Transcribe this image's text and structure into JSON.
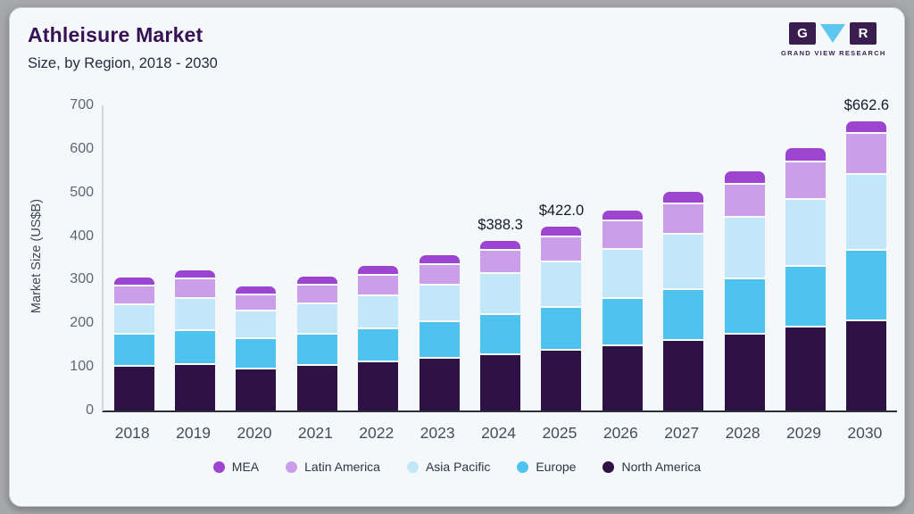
{
  "header": {
    "title": "Athleisure Market",
    "subtitle": "Size, by Region, 2018 - 2030"
  },
  "logo": {
    "letters": [
      "G",
      "R"
    ],
    "triangle_icon": "cyan-down-triangle",
    "text": "GRAND VIEW RESEARCH"
  },
  "chart_data": {
    "type": "bar",
    "stacked": true,
    "title": "Athleisure Market Size, by Region, 2018 - 2030",
    "xlabel": "",
    "ylabel": "Market Size (US$B)",
    "ylim": [
      0,
      700
    ],
    "yticks": [
      0,
      100,
      200,
      300,
      400,
      500,
      600,
      700
    ],
    "grid": false,
    "legend_position": "bottom",
    "categories": [
      "2018",
      "2019",
      "2020",
      "2021",
      "2022",
      "2023",
      "2024",
      "2025",
      "2026",
      "2027",
      "2028",
      "2029",
      "2030"
    ],
    "series": [
      {
        "name": "North America",
        "color": "#2e1145",
        "values": [
          100,
          105,
          95,
          102,
          110,
          118,
          127.3,
          137,
          148,
          160,
          175,
          191,
          205
        ]
      },
      {
        "name": "Europe",
        "color": "#4fc3f0",
        "values": [
          74,
          78,
          69,
          72,
          77,
          85,
          91,
          98,
          107,
          117,
          127,
          139,
          161
        ]
      },
      {
        "name": "Asia Pacific",
        "color": "#c2e7f8",
        "values": [
          68,
          73,
          64,
          70,
          76,
          83,
          94,
          104,
          114,
          126,
          140,
          154,
          175
        ]
      },
      {
        "name": "Latin America",
        "color": "#cb9eea",
        "values": [
          42,
          44,
          37,
          43,
          47,
          47,
          54,
          59,
          64,
          70,
          77,
          85,
          93
        ]
      },
      {
        "name": "MEA",
        "color": "#9d44d0",
        "values": [
          20,
          21,
          19,
          20,
          22,
          24,
          22,
          24,
          26,
          28,
          30,
          33,
          28.6
        ]
      }
    ],
    "legend_order": [
      "MEA",
      "Latin America",
      "Asia Pacific",
      "Europe",
      "North America"
    ],
    "annotations": [
      {
        "category": "2024",
        "text": "$388.3",
        "value": 388.3
      },
      {
        "category": "2025",
        "text": "$422.0",
        "value": 422.0
      },
      {
        "category": "2030",
        "text": "$662.6",
        "value": 662.6
      }
    ]
  },
  "colors": {
    "page_bg": "#a7a8ac",
    "card_bg": "#f5f8fa",
    "title": "#371056",
    "subtitle": "#222e3e",
    "x_axis_line": "#2a2f38",
    "y_axis_line": "#d2d5db",
    "tick_text": "#5d6673",
    "x_label_text": "#434e5b",
    "annotation_text": "#101b29",
    "legend_text": "#2d3642",
    "logo_purple": "#3a1d4f",
    "logo_cyan": "#5ec7ef"
  }
}
